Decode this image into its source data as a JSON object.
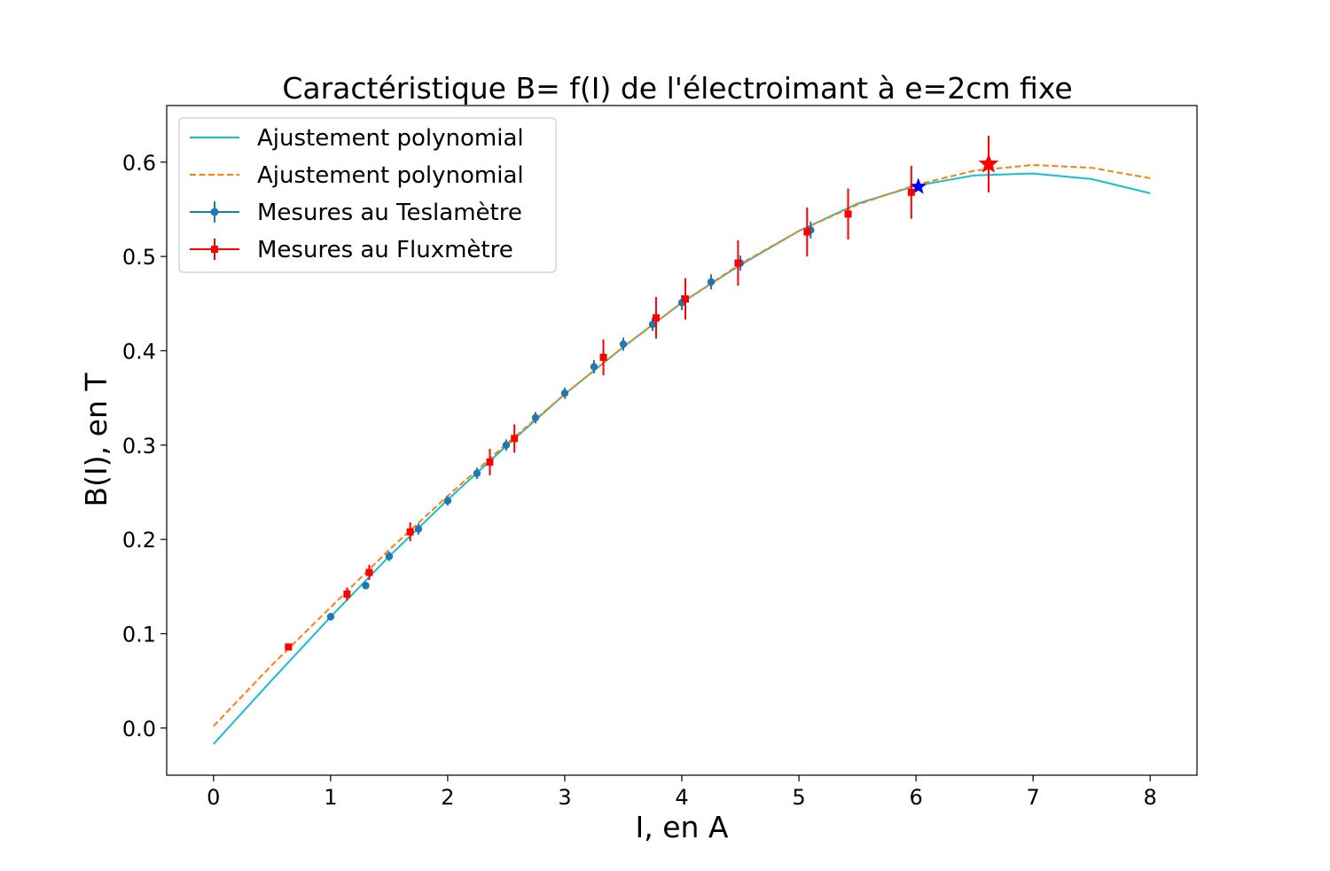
{
  "chart_data": {
    "type": "scatter",
    "title": "Caractéristique B= f(I) de l'électroimant à e=2cm fixe",
    "xlabel": "I, en A",
    "ylabel": "B(I), en T",
    "xlim": [
      -0.4,
      8.4
    ],
    "ylim": [
      -0.05,
      0.66
    ],
    "xticks": [
      0,
      1,
      2,
      3,
      4,
      5,
      6,
      7,
      8
    ],
    "yticks": [
      0.0,
      0.1,
      0.2,
      0.3,
      0.4,
      0.5,
      0.6
    ],
    "grid": false,
    "legend_position": "top-left",
    "fits": [
      {
        "name": "Ajustement polynomial",
        "style": "solid",
        "color": "#17becf",
        "x": [
          0,
          0.5,
          1,
          1.5,
          2,
          2.5,
          3,
          3.5,
          4,
          4.5,
          5,
          5.5,
          6,
          6.5,
          7,
          7.5,
          8
        ],
        "y": [
          -0.017,
          0.051,
          0.118,
          0.182,
          0.242,
          0.299,
          0.354,
          0.404,
          0.451,
          0.491,
          0.527,
          0.556,
          0.575,
          0.586,
          0.588,
          0.582,
          0.567
        ]
      },
      {
        "name": "Ajustement polynomial",
        "style": "dashed",
        "color": "#ff7f0e",
        "x": [
          0,
          0.5,
          1,
          1.5,
          2,
          2.5,
          3,
          3.5,
          4,
          4.5,
          5,
          5.5,
          6,
          6.5,
          7,
          7.5,
          8
        ],
        "y": [
          0.002,
          0.067,
          0.128,
          0.189,
          0.246,
          0.301,
          0.354,
          0.404,
          0.451,
          0.492,
          0.527,
          0.555,
          0.576,
          0.591,
          0.597,
          0.594,
          0.583
        ]
      }
    ],
    "series": [
      {
        "name": "Mesures au Teslamètre",
        "color": "#1f77b4",
        "marker": "circle",
        "x": [
          1.0,
          1.3,
          1.5,
          1.75,
          2.0,
          2.25,
          2.5,
          2.75,
          3.0,
          3.25,
          3.5,
          3.75,
          4.0,
          4.25,
          4.5,
          5.1,
          6.02
        ],
        "y": [
          0.118,
          0.151,
          0.182,
          0.211,
          0.241,
          0.27,
          0.3,
          0.329,
          0.355,
          0.383,
          0.407,
          0.428,
          0.451,
          0.473,
          0.493,
          0.528,
          0.574
        ],
        "yerr": [
          0.004,
          0.004,
          0.005,
          0.006,
          0.005,
          0.006,
          0.006,
          0.006,
          0.006,
          0.007,
          0.007,
          0.007,
          0.008,
          0.008,
          0.008,
          0.009,
          0.0
        ],
        "highlight": {
          "x": 6.02,
          "y": 0.574,
          "marker": "star"
        }
      },
      {
        "name": "Mesures au Fluxmètre",
        "color": "#ff0000",
        "marker": "square",
        "x": [
          0.64,
          1.14,
          1.33,
          1.68,
          2.36,
          2.57,
          3.33,
          3.78,
          4.03,
          4.48,
          5.07,
          5.42,
          5.96,
          6.62
        ],
        "y": [
          0.086,
          0.142,
          0.165,
          0.208,
          0.282,
          0.307,
          0.393,
          0.435,
          0.455,
          0.493,
          0.526,
          0.545,
          0.568,
          0.598
        ],
        "yerr": [
          0.003,
          0.007,
          0.008,
          0.01,
          0.014,
          0.015,
          0.019,
          0.022,
          0.022,
          0.024,
          0.026,
          0.027,
          0.028,
          0.03
        ],
        "highlight": {
          "x": 6.62,
          "y": 0.598,
          "marker": "star"
        }
      }
    ]
  }
}
